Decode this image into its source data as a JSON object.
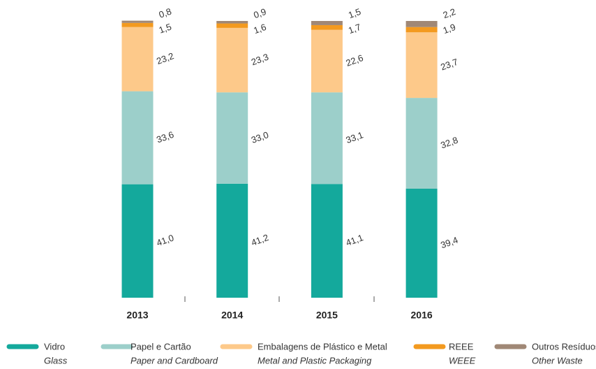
{
  "chart_data": {
    "type": "stacked_bar",
    "categories": [
      "2013",
      "2014",
      "2015",
      "2016"
    ],
    "series": [
      {
        "name": "Vidro",
        "name_en": "Glass",
        "color": "#14a99c",
        "values": [
          41.0,
          41.2,
          41.1,
          39.4
        ],
        "value_labels": [
          "41,0",
          "41,2",
          "41,1",
          "39,4"
        ]
      },
      {
        "name": "Papel e Cartão",
        "name_en": "Paper and Cardboard",
        "color": "#9ccfca",
        "values": [
          33.6,
          33.0,
          33.1,
          32.8
        ],
        "value_labels": [
          "33,6",
          "33,0",
          "33,1",
          "32,8"
        ]
      },
      {
        "name": "Embalagens de Plástico e Metal",
        "name_en": "Metal and Plastic Packaging",
        "color": "#fdc98a",
        "values": [
          23.2,
          23.3,
          22.6,
          23.7
        ],
        "value_labels": [
          "23,2",
          "23,3",
          "22,6",
          "23,7"
        ]
      },
      {
        "name": "REEE",
        "name_en": "WEEE",
        "color": "#f39a1f",
        "values": [
          1.5,
          1.6,
          1.7,
          1.9
        ],
        "value_labels": [
          "1,5",
          "1,6",
          "1,7",
          "1,9"
        ]
      },
      {
        "name": "Outros Resíduos",
        "name_en": "Other Waste",
        "color": "#a08876",
        "values": [
          0.8,
          0.9,
          1.5,
          2.2
        ],
        "value_labels": [
          "0,8",
          "0,9",
          "1,5",
          "2,2"
        ]
      }
    ]
  }
}
